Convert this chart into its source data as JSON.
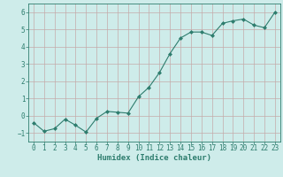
{
  "x": [
    0,
    1,
    2,
    3,
    4,
    5,
    6,
    7,
    8,
    9,
    10,
    11,
    12,
    13,
    14,
    15,
    16,
    17,
    18,
    19,
    20,
    21,
    22,
    23
  ],
  "y": [
    -0.4,
    -0.9,
    -0.75,
    -0.2,
    -0.55,
    -0.95,
    -0.15,
    0.25,
    0.2,
    0.15,
    1.1,
    1.65,
    2.5,
    3.6,
    4.5,
    4.85,
    4.85,
    4.65,
    5.35,
    5.5,
    5.6,
    5.25,
    5.1,
    6.0
  ],
  "xlim": [
    -0.5,
    23.5
  ],
  "ylim": [
    -1.5,
    6.5
  ],
  "xticks": [
    0,
    1,
    2,
    3,
    4,
    5,
    6,
    7,
    8,
    9,
    10,
    11,
    12,
    13,
    14,
    15,
    16,
    17,
    18,
    19,
    20,
    21,
    22,
    23
  ],
  "yticks": [
    -1,
    0,
    1,
    2,
    3,
    4,
    5,
    6
  ],
  "xlabel": "Humidex (Indice chaleur)",
  "line_color": "#2e7d6e",
  "marker": "D",
  "marker_size": 2.0,
  "bg_color": "#ceecea",
  "grid_color": "#c4aaaa",
  "axis_color": "#2e7d6e",
  "tick_fontsize": 5.5,
  "xlabel_fontsize": 6.5
}
